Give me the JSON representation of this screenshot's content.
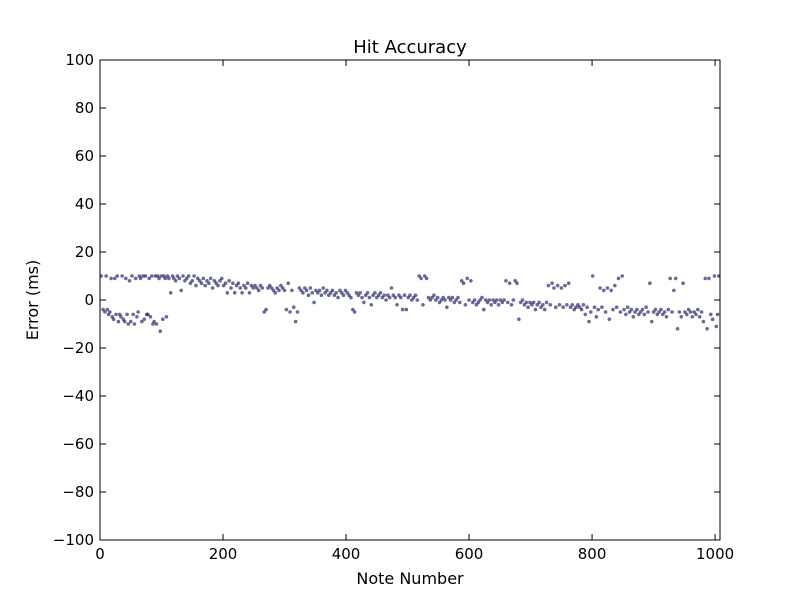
{
  "chart_data": {
    "type": "scatter",
    "title": "Hit Accuracy",
    "xlabel": "Note Number",
    "ylabel": "Error (ms)",
    "xlim": [
      0,
      1008
    ],
    "ylim": [
      -100,
      100
    ],
    "x_ticks": [
      0,
      200,
      400,
      600,
      800,
      1000
    ],
    "y_ticks": [
      100,
      80,
      60,
      40,
      20,
      0,
      -20,
      -40,
      -60,
      -80,
      -100
    ],
    "x_tick_labels": [
      "0",
      "200",
      "400",
      "600",
      "800",
      "1000"
    ],
    "y_tick_labels": [
      "100",
      "80",
      "60",
      "40",
      "20",
      "0",
      "−20",
      "−40",
      "−60",
      "−80",
      "−100"
    ],
    "grid": false,
    "legend": "none",
    "marker_color": "#1a1a5e",
    "marker_opacity": 0.65,
    "points": [
      [
        2,
        10
      ],
      [
        5,
        -4
      ],
      [
        8,
        -5
      ],
      [
        10,
        10
      ],
      [
        12,
        -4
      ],
      [
        14,
        -6
      ],
      [
        16,
        -5
      ],
      [
        18,
        9
      ],
      [
        20,
        -7
      ],
      [
        22,
        -8
      ],
      [
        24,
        9
      ],
      [
        26,
        -6
      ],
      [
        28,
        10
      ],
      [
        30,
        -9
      ],
      [
        32,
        -6
      ],
      [
        34,
        -7
      ],
      [
        36,
        10
      ],
      [
        38,
        -8
      ],
      [
        40,
        -9
      ],
      [
        42,
        9
      ],
      [
        44,
        -6
      ],
      [
        46,
        -10
      ],
      [
        48,
        8
      ],
      [
        50,
        -9
      ],
      [
        52,
        10
      ],
      [
        54,
        -6
      ],
      [
        56,
        -10
      ],
      [
        58,
        9
      ],
      [
        60,
        -7
      ],
      [
        62,
        -5
      ],
      [
        64,
        10
      ],
      [
        66,
        9
      ],
      [
        68,
        -9
      ],
      [
        70,
        10
      ],
      [
        72,
        -8
      ],
      [
        74,
        10
      ],
      [
        76,
        -6
      ],
      [
        78,
        -6
      ],
      [
        80,
        9
      ],
      [
        82,
        -7
      ],
      [
        84,
        10
      ],
      [
        86,
        -10
      ],
      [
        88,
        -9
      ],
      [
        90,
        10
      ],
      [
        92,
        -10
      ],
      [
        94,
        10
      ],
      [
        96,
        9
      ],
      [
        98,
        -13
      ],
      [
        100,
        10
      ],
      [
        102,
        -8
      ],
      [
        104,
        10
      ],
      [
        106,
        9
      ],
      [
        108,
        -7
      ],
      [
        110,
        10
      ],
      [
        112,
        9
      ],
      [
        115,
        3
      ],
      [
        118,
        10
      ],
      [
        120,
        9
      ],
      [
        123,
        8
      ],
      [
        126,
        10
      ],
      [
        129,
        9
      ],
      [
        132,
        4
      ],
      [
        135,
        10
      ],
      [
        138,
        8
      ],
      [
        141,
        9
      ],
      [
        144,
        10
      ],
      [
        147,
        7
      ],
      [
        150,
        8
      ],
      [
        153,
        10
      ],
      [
        156,
        6
      ],
      [
        159,
        9
      ],
      [
        162,
        8
      ],
      [
        165,
        7
      ],
      [
        168,
        9
      ],
      [
        171,
        6
      ],
      [
        174,
        8
      ],
      [
        177,
        7
      ],
      [
        180,
        9
      ],
      [
        183,
        5
      ],
      [
        186,
        8
      ],
      [
        189,
        7
      ],
      [
        192,
        6
      ],
      [
        195,
        8
      ],
      [
        198,
        9
      ],
      [
        201,
        6
      ],
      [
        204,
        7
      ],
      [
        207,
        3
      ],
      [
        210,
        8
      ],
      [
        213,
        5
      ],
      [
        216,
        7
      ],
      [
        219,
        3
      ],
      [
        222,
        6
      ],
      [
        225,
        7
      ],
      [
        228,
        5
      ],
      [
        231,
        3
      ],
      [
        234,
        6
      ],
      [
        237,
        5
      ],
      [
        240,
        7
      ],
      [
        243,
        3
      ],
      [
        246,
        6
      ],
      [
        249,
        5
      ],
      [
        252,
        6
      ],
      [
        255,
        5
      ],
      [
        258,
        4
      ],
      [
        261,
        6
      ],
      [
        264,
        5
      ],
      [
        267,
        -5
      ],
      [
        270,
        -4
      ],
      [
        273,
        5
      ],
      [
        276,
        6
      ],
      [
        279,
        5
      ],
      [
        282,
        4
      ],
      [
        285,
        3
      ],
      [
        288,
        5
      ],
      [
        291,
        4
      ],
      [
        294,
        6
      ],
      [
        297,
        5
      ],
      [
        300,
        4
      ],
      [
        303,
        -4
      ],
      [
        306,
        7
      ],
      [
        309,
        -5
      ],
      [
        312,
        4
      ],
      [
        315,
        -3
      ],
      [
        318,
        -9
      ],
      [
        321,
        -5
      ],
      [
        324,
        5
      ],
      [
        327,
        4
      ],
      [
        330,
        3
      ],
      [
        333,
        5
      ],
      [
        336,
        4
      ],
      [
        339,
        2
      ],
      [
        342,
        5
      ],
      [
        345,
        3
      ],
      [
        348,
        -1
      ],
      [
        351,
        4
      ],
      [
        354,
        3
      ],
      [
        357,
        4
      ],
      [
        360,
        2
      ],
      [
        363,
        5
      ],
      [
        366,
        3
      ],
      [
        369,
        4
      ],
      [
        372,
        2
      ],
      [
        375,
        3
      ],
      [
        378,
        4
      ],
      [
        381,
        2
      ],
      [
        384,
        3
      ],
      [
        387,
        1
      ],
      [
        390,
        4
      ],
      [
        393,
        3
      ],
      [
        396,
        2
      ],
      [
        399,
        4
      ],
      [
        402,
        3
      ],
      [
        405,
        2
      ],
      [
        408,
        1
      ],
      [
        411,
        -4
      ],
      [
        414,
        -5
      ],
      [
        417,
        3
      ],
      [
        420,
        2
      ],
      [
        423,
        3
      ],
      [
        426,
        1
      ],
      [
        429,
        -1
      ],
      [
        432,
        2
      ],
      [
        435,
        3
      ],
      [
        438,
        1
      ],
      [
        441,
        -2
      ],
      [
        444,
        2
      ],
      [
        447,
        3
      ],
      [
        450,
        1
      ],
      [
        453,
        2
      ],
      [
        456,
        3
      ],
      [
        459,
        1
      ],
      [
        462,
        2
      ],
      [
        465,
        0
      ],
      [
        468,
        2
      ],
      [
        471,
        1
      ],
      [
        474,
        5
      ],
      [
        477,
        2
      ],
      [
        480,
        1
      ],
      [
        483,
        -2
      ],
      [
        486,
        2
      ],
      [
        489,
        1
      ],
      [
        492,
        -4
      ],
      [
        495,
        2
      ],
      [
        498,
        -4
      ],
      [
        501,
        1
      ],
      [
        504,
        2
      ],
      [
        507,
        0
      ],
      [
        510,
        1
      ],
      [
        513,
        2
      ],
      [
        516,
        0
      ],
      [
        519,
        10
      ],
      [
        522,
        9
      ],
      [
        525,
        -2
      ],
      [
        528,
        10
      ],
      [
        531,
        9
      ],
      [
        534,
        1
      ],
      [
        537,
        0
      ],
      [
        540,
        1
      ],
      [
        543,
        2
      ],
      [
        546,
        0
      ],
      [
        549,
        1
      ],
      [
        552,
        -1
      ],
      [
        555,
        0
      ],
      [
        558,
        1
      ],
      [
        561,
        0
      ],
      [
        564,
        -3
      ],
      [
        567,
        1
      ],
      [
        570,
        0
      ],
      [
        573,
        1
      ],
      [
        576,
        -1
      ],
      [
        579,
        0
      ],
      [
        582,
        1
      ],
      [
        585,
        -1
      ],
      [
        588,
        8
      ],
      [
        591,
        7
      ],
      [
        594,
        -2
      ],
      [
        597,
        9
      ],
      [
        600,
        0
      ],
      [
        603,
        8
      ],
      [
        606,
        -1
      ],
      [
        609,
        0
      ],
      [
        612,
        -2
      ],
      [
        615,
        -1
      ],
      [
        618,
        0
      ],
      [
        621,
        1
      ],
      [
        624,
        -4
      ],
      [
        627,
        0
      ],
      [
        630,
        -1
      ],
      [
        633,
        0
      ],
      [
        636,
        -2
      ],
      [
        639,
        0
      ],
      [
        642,
        -1
      ],
      [
        645,
        0
      ],
      [
        648,
        -2
      ],
      [
        651,
        0
      ],
      [
        654,
        -1
      ],
      [
        657,
        0
      ],
      [
        660,
        8
      ],
      [
        663,
        -1
      ],
      [
        666,
        7
      ],
      [
        669,
        -2
      ],
      [
        672,
        0
      ],
      [
        675,
        8
      ],
      [
        678,
        7
      ],
      [
        681,
        -8
      ],
      [
        684,
        -1
      ],
      [
        687,
        0
      ],
      [
        690,
        -2
      ],
      [
        693,
        -1
      ],
      [
        696,
        -3
      ],
      [
        699,
        -1
      ],
      [
        702,
        -2
      ],
      [
        705,
        -1
      ],
      [
        708,
        -4
      ],
      [
        711,
        -2
      ],
      [
        714,
        -1
      ],
      [
        717,
        -3
      ],
      [
        720,
        -2
      ],
      [
        723,
        -4
      ],
      [
        726,
        -1
      ],
      [
        729,
        6
      ],
      [
        732,
        -2
      ],
      [
        735,
        7
      ],
      [
        738,
        5
      ],
      [
        741,
        -3
      ],
      [
        744,
        6
      ],
      [
        747,
        -2
      ],
      [
        750,
        5
      ],
      [
        753,
        -3
      ],
      [
        756,
        6
      ],
      [
        759,
        -2
      ],
      [
        762,
        7
      ],
      [
        765,
        -3
      ],
      [
        768,
        -2
      ],
      [
        771,
        -4
      ],
      [
        774,
        -3
      ],
      [
        777,
        -2
      ],
      [
        780,
        -3
      ],
      [
        783,
        -4
      ],
      [
        786,
        -2
      ],
      [
        789,
        -6
      ],
      [
        792,
        -3
      ],
      [
        795,
        -9
      ],
      [
        798,
        -5
      ],
      [
        801,
        10
      ],
      [
        804,
        -3
      ],
      [
        807,
        -7
      ],
      [
        810,
        -4
      ],
      [
        813,
        5
      ],
      [
        816,
        -3
      ],
      [
        819,
        4
      ],
      [
        822,
        -5
      ],
      [
        825,
        5
      ],
      [
        828,
        -8
      ],
      [
        831,
        4
      ],
      [
        834,
        -4
      ],
      [
        837,
        6
      ],
      [
        840,
        -3
      ],
      [
        843,
        9
      ],
      [
        846,
        -5
      ],
      [
        849,
        10
      ],
      [
        852,
        -4
      ],
      [
        855,
        -6
      ],
      [
        858,
        -3
      ],
      [
        861,
        -5
      ],
      [
        864,
        -4
      ],
      [
        867,
        -7
      ],
      [
        870,
        -5
      ],
      [
        873,
        -4
      ],
      [
        876,
        -6
      ],
      [
        879,
        -5
      ],
      [
        882,
        -4
      ],
      [
        885,
        -6
      ],
      [
        888,
        -3
      ],
      [
        891,
        -5
      ],
      [
        894,
        7
      ],
      [
        897,
        -9
      ],
      [
        900,
        -5
      ],
      [
        903,
        -4
      ],
      [
        906,
        -6
      ],
      [
        909,
        -5
      ],
      [
        912,
        -4
      ],
      [
        915,
        -6
      ],
      [
        918,
        -5
      ],
      [
        921,
        -7
      ],
      [
        924,
        -4
      ],
      [
        927,
        9
      ],
      [
        930,
        -5
      ],
      [
        933,
        4
      ],
      [
        936,
        9
      ],
      [
        939,
        -12
      ],
      [
        942,
        -5
      ],
      [
        945,
        -7
      ],
      [
        948,
        7
      ],
      [
        951,
        -5
      ],
      [
        954,
        -6
      ],
      [
        957,
        -4
      ],
      [
        960,
        -5
      ],
      [
        963,
        -7
      ],
      [
        966,
        -5
      ],
      [
        969,
        -6
      ],
      [
        972,
        -4
      ],
      [
        975,
        -7
      ],
      [
        978,
        -5
      ],
      [
        981,
        -9
      ],
      [
        984,
        9
      ],
      [
        987,
        -12
      ],
      [
        990,
        9
      ],
      [
        993,
        -6
      ],
      [
        996,
        -8
      ],
      [
        999,
        10
      ],
      [
        1002,
        -11
      ],
      [
        1004,
        -6
      ],
      [
        1006,
        10
      ]
    ]
  }
}
